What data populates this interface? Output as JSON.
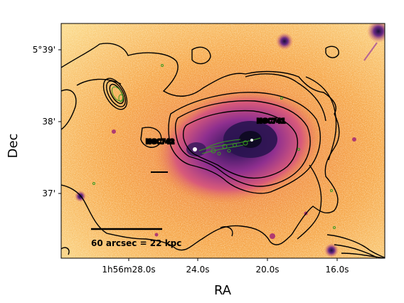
{
  "figure": {
    "xlabel": "RA",
    "ylabel": "Dec",
    "x_ticks": [
      "1h56m28.0s",
      "24.0s",
      "20.0s",
      "16.0s"
    ],
    "y_ticks": [
      "5°39'",
      "38'",
      "37'"
    ]
  },
  "labels": {
    "galaxy_a": "NGC741",
    "galaxy_b": "NGC742",
    "scale_bar": "60 arcsec = 22 kpc"
  },
  "colors": {
    "background_outer": "#fbe9a6",
    "background_mid": "#f7a64a",
    "halo_inner": "#8f2f8f",
    "core": "#1a0f3a",
    "contour": "#000000",
    "radio_contour": "#3a9a22"
  }
}
